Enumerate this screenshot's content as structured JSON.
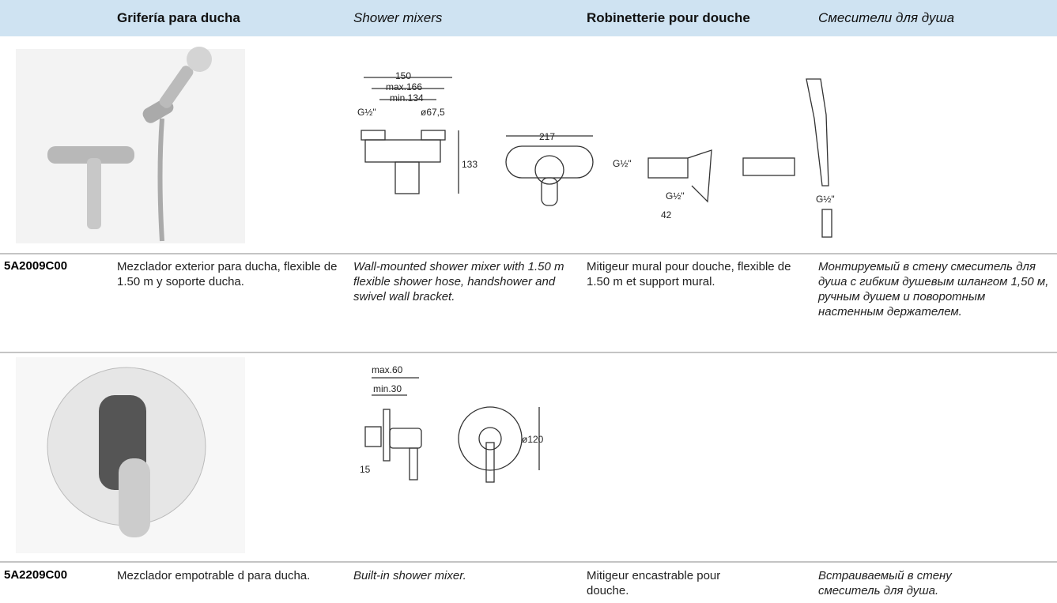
{
  "header": {
    "columns": [
      "Grifería para ducha",
      "Shower mixers",
      "Robinetterie pour douche",
      "Смесители для душа"
    ]
  },
  "products": [
    {
      "code": "5A2009C00",
      "descriptions": [
        "Mezclador exterior para ducha, flexible de 1.50 m y soporte ducha.",
        "Wall-mounted shower mixer with 1.50 m flexible shower hose, handshower and swivel wall bracket.",
        "Mitigeur mural pour douche, flexible de 1.50 m et support mural.",
        "Монтируемый в стену смеситель для душа с гибким душевым шлангом 1,50 м, ручным душем и поворотным настенным держателем."
      ],
      "dimensions": [
        "150",
        "max.166",
        "min.134",
        "G½\"",
        "ø67,5",
        "217",
        "133",
        "G½\"",
        "G½\"",
        "42",
        "G½\""
      ]
    },
    {
      "code": "5A2209C00",
      "descriptions": [
        "Mezclador empotrable d para ducha.",
        "Built-in shower mixer.",
        "Mitigeur encastrable pour douche.",
        "Встраиваемый в стену смеситель для душа."
      ],
      "dimensions": [
        "max.60",
        "min.30",
        "15",
        "ø120"
      ]
    }
  ]
}
